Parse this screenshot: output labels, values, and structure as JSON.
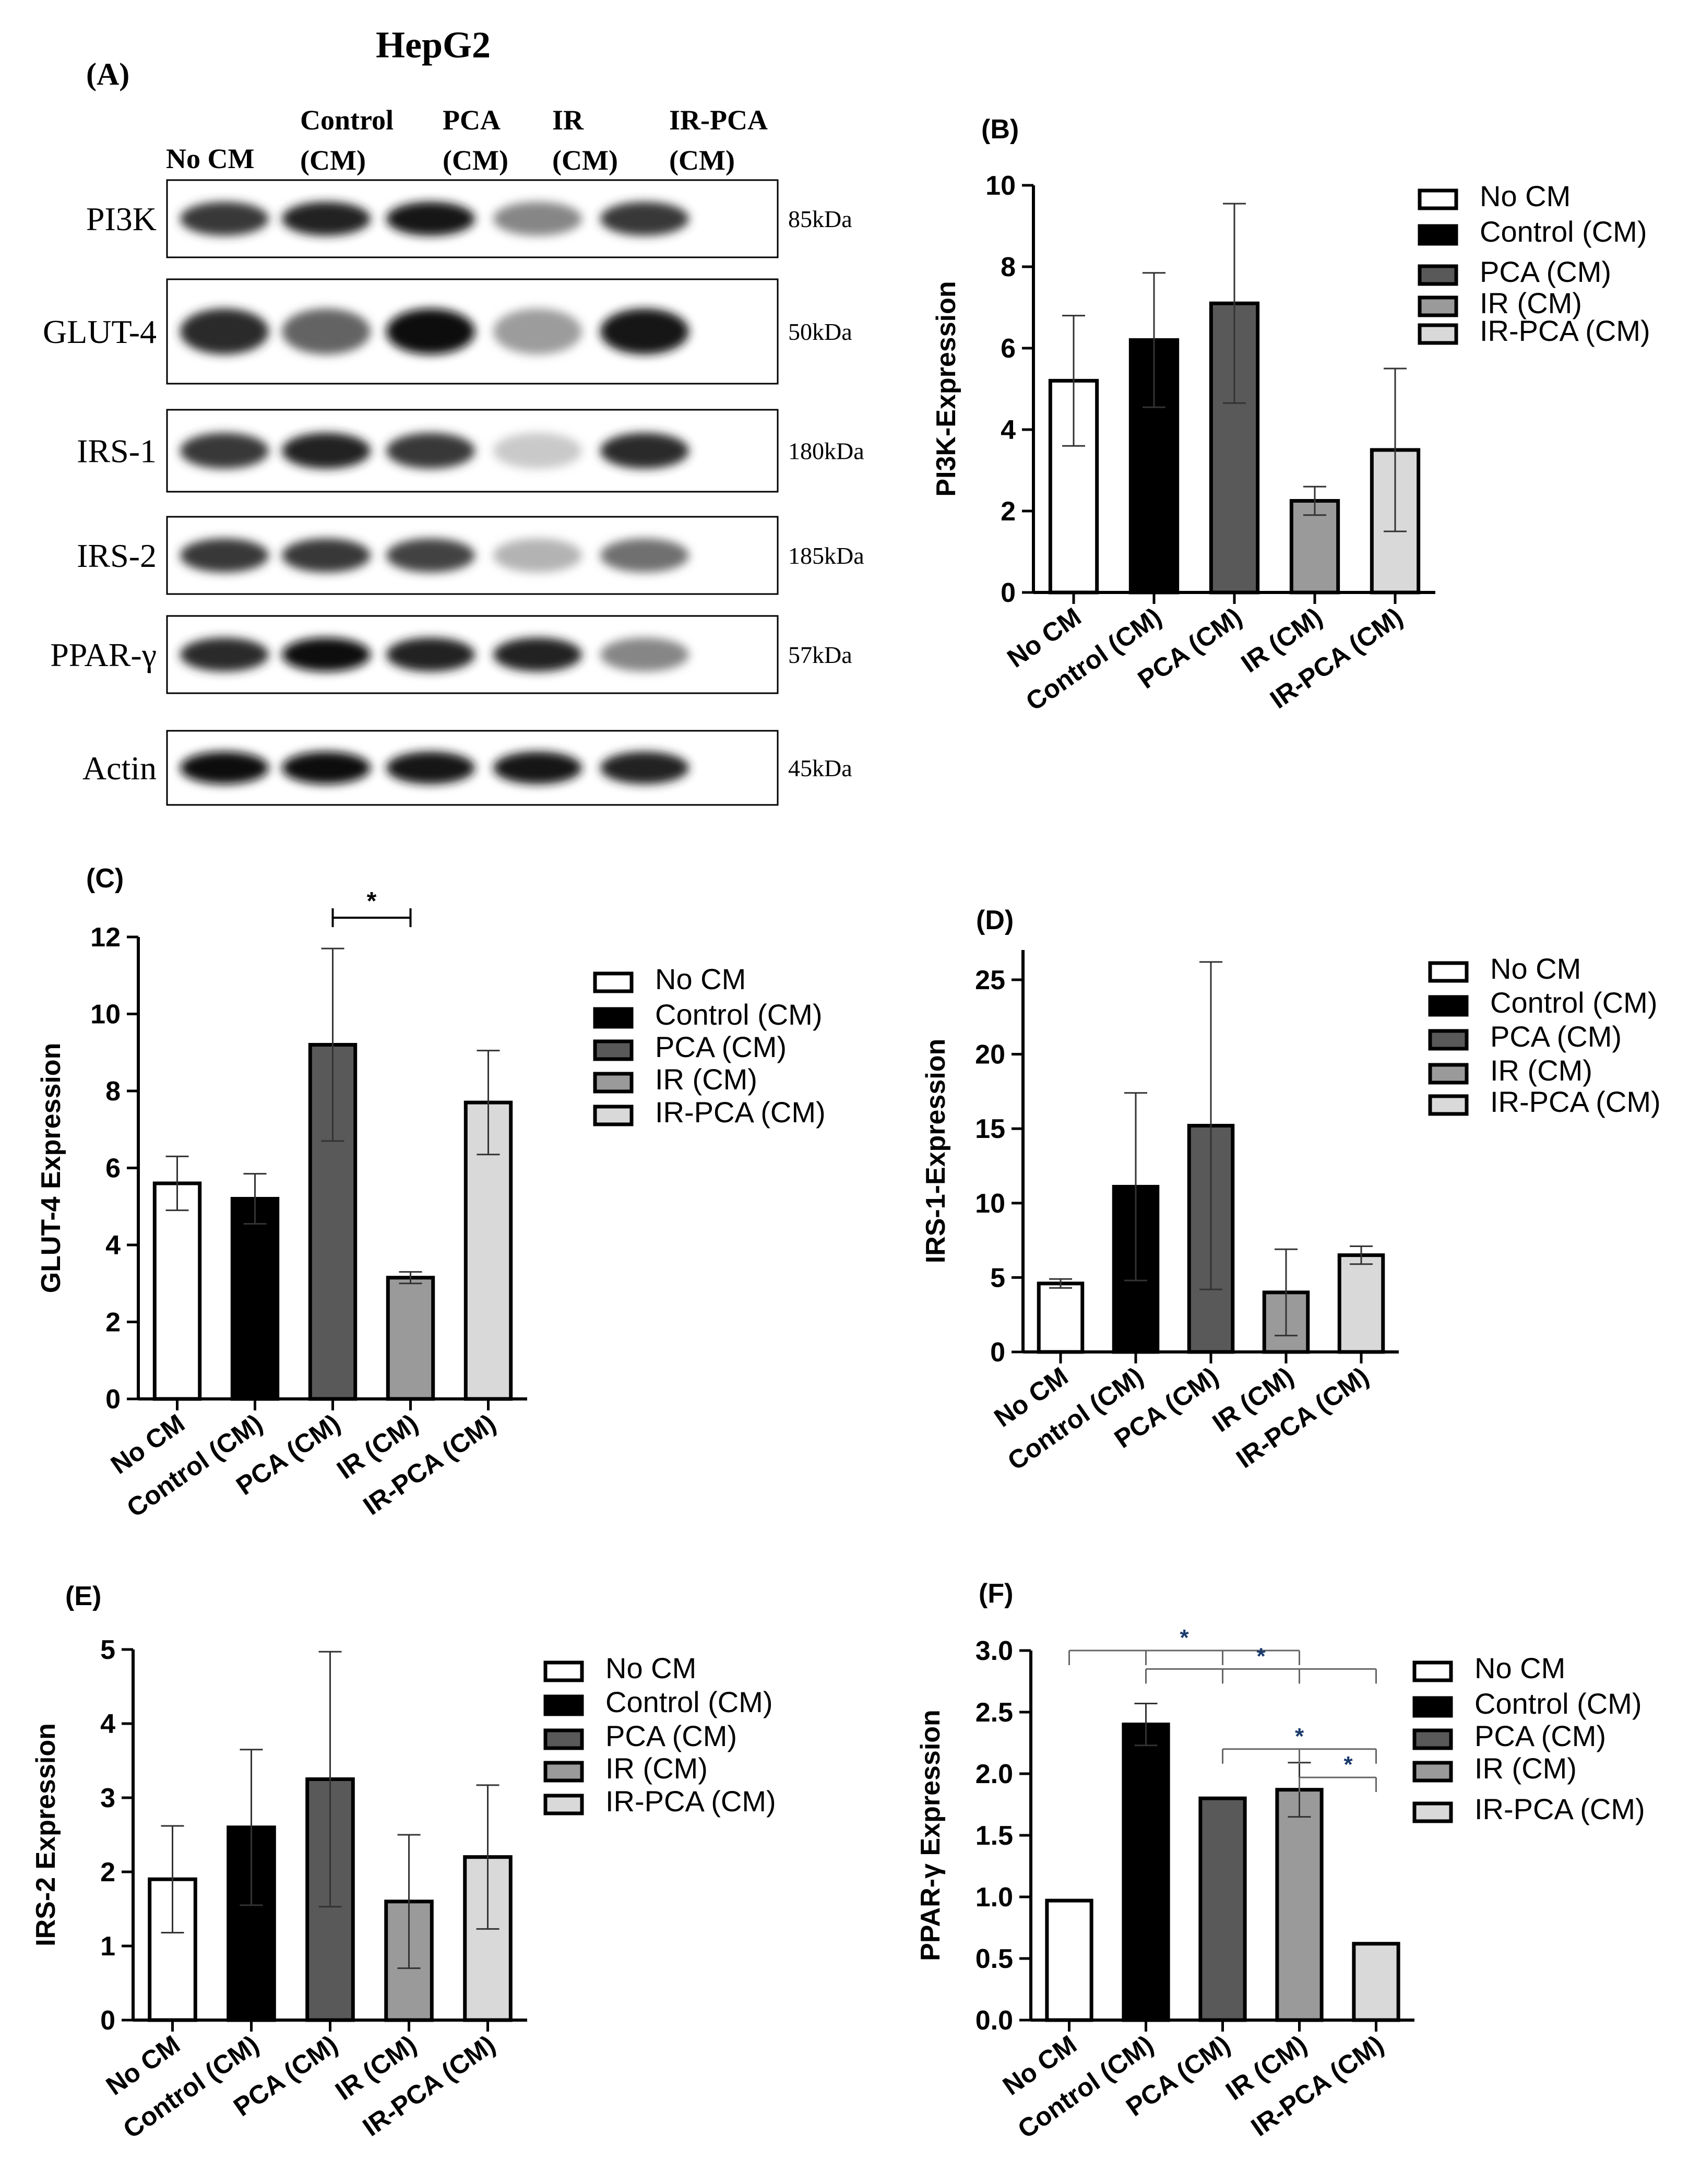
{
  "figure": {
    "cell_line": "HepG2",
    "panel_a_label": "(A)",
    "lanes": [
      "No CM",
      "Control\n(CM)",
      "PCA\n(CM)",
      "IR\n(CM)",
      "IR-PCA\n(CM)"
    ],
    "blots": [
      {
        "protein": "PI3K",
        "size": "85kDa",
        "intensities": [
          0.8,
          0.9,
          0.95,
          0.45,
          0.8
        ]
      },
      {
        "protein": "GLUT-4",
        "size": "50kDa",
        "intensities": [
          0.85,
          0.6,
          1.0,
          0.35,
          0.95
        ]
      },
      {
        "protein": "IRS-1",
        "size": "180kDa",
        "intensities": [
          0.8,
          0.9,
          0.8,
          0.15,
          0.85
        ]
      },
      {
        "protein": "IRS-2",
        "size": "185kDa",
        "intensities": [
          0.8,
          0.8,
          0.75,
          0.25,
          0.55
        ]
      },
      {
        "protein": "PPAR-γ",
        "size": "57kDa",
        "intensities": [
          0.85,
          1.0,
          0.9,
          0.9,
          0.45
        ]
      },
      {
        "protein": "Actin",
        "size": "45kDa",
        "intensities": [
          1.0,
          1.0,
          0.95,
          0.95,
          0.9
        ]
      }
    ]
  },
  "colors": {
    "no_cm": "#ffffff",
    "control": "#000000",
    "pca": "#595959",
    "ir": "#9a9a9a",
    "ir_pca": "#d9d9d9"
  },
  "chart_data": [
    {
      "panel": "(B)",
      "type": "bar",
      "ylabel": "PI3K-Expression",
      "categories": [
        "No CM",
        "Control (CM)",
        "PCA (CM)",
        "IR (CM)",
        "IR-PCA (CM)"
      ],
      "values": [
        5.2,
        6.2,
        7.1,
        2.25,
        3.5
      ],
      "errors": [
        1.6,
        1.65,
        2.45,
        0.35,
        2.0
      ],
      "ylim": [
        0,
        10
      ],
      "yticks": [
        "0",
        "2",
        "4",
        "6",
        "8",
        "10"
      ],
      "legend": [
        "No CM",
        "Control (CM)",
        "PCA (CM)",
        "IR (CM)",
        "IR-PCA (CM)"
      ],
      "legend_position": "right",
      "significance": []
    },
    {
      "panel": "(C)",
      "type": "bar",
      "ylabel": "GLUT-4 Expression",
      "categories": [
        "No CM",
        "Control (CM)",
        "PCA (CM)",
        "IR (CM)",
        "IR-PCA (CM)"
      ],
      "values": [
        5.6,
        5.2,
        9.2,
        3.15,
        7.7
      ],
      "errors": [
        0.7,
        0.65,
        2.5,
        0.15,
        1.35
      ],
      "ylim": [
        0,
        12
      ],
      "yticks": [
        "0",
        "2",
        "4",
        "6",
        "8",
        "10",
        "12"
      ],
      "legend": [
        "No CM",
        "Control (CM)",
        "PCA (CM)",
        "IR (CM)",
        "IR-PCA (CM)"
      ],
      "legend_position": "right",
      "significance": [
        {
          "from": 2,
          "to": 3,
          "label": "*"
        }
      ]
    },
    {
      "panel": "(D)",
      "type": "bar",
      "ylabel": "IRS-1-Expression",
      "categories": [
        "No CM",
        "Control (CM)",
        "PCA (CM)",
        "IR (CM)",
        "IR-PCA (CM)"
      ],
      "values": [
        4.6,
        11.1,
        15.2,
        4.0,
        6.5
      ],
      "errors": [
        0.3,
        6.3,
        11.0,
        2.9,
        0.6
      ],
      "ylim": [
        0,
        27
      ],
      "yticks": [
        "0",
        "5",
        "10",
        "15",
        "20",
        "25"
      ],
      "legend": [
        "No CM",
        "Control (CM)",
        "PCA (CM)",
        "IR (CM)",
        "IR-PCA (CM)"
      ],
      "legend_position": "right",
      "significance": []
    },
    {
      "panel": "(E)",
      "type": "bar",
      "ylabel": "IRS-2 Expression",
      "categories": [
        "No CM",
        "Control (CM)",
        "PCA (CM)",
        "IR (CM)",
        "IR-PCA (CM)"
      ],
      "values": [
        1.9,
        2.6,
        3.25,
        1.6,
        2.2
      ],
      "errors": [
        0.72,
        1.05,
        1.72,
        0.9,
        0.97
      ],
      "ylim": [
        0,
        5
      ],
      "yticks": [
        "0",
        "1",
        "2",
        "3",
        "4",
        "5"
      ],
      "legend": [
        "No CM",
        "Control (CM)",
        "PCA (CM)",
        "IR (CM)",
        "IR-PCA (CM)"
      ],
      "legend_position": "right",
      "significance": []
    },
    {
      "panel": "(F)",
      "type": "bar",
      "ylabel": "PPAR-γ Expression",
      "categories": [
        "No CM",
        "Control (CM)",
        "PCA (CM)",
        "IR (CM)",
        "IR-PCA (CM)"
      ],
      "values": [
        0.97,
        2.4,
        1.8,
        1.87,
        0.62
      ],
      "errors": [
        0.0,
        0.17,
        0.0,
        0.22,
        0.0
      ],
      "ylim": [
        0,
        3
      ],
      "yticks": [
        "0.0",
        "0.5",
        "1.0",
        "1.5",
        "2.0",
        "2.5",
        "3.0"
      ],
      "legend": [
        "No CM",
        "Control (CM)",
        "PCA (CM)",
        "IR (CM)",
        "IR-PCA (CM)"
      ],
      "legend_position": "right",
      "significance": [
        {
          "groups": [
            0,
            1,
            2,
            3
          ],
          "label": "*"
        },
        {
          "groups": [
            1,
            2,
            3,
            4
          ],
          "label": "*"
        },
        {
          "groups": [
            2,
            3,
            4
          ],
          "label": "*"
        },
        {
          "groups": [
            3,
            4
          ],
          "label": "*"
        }
      ]
    }
  ]
}
